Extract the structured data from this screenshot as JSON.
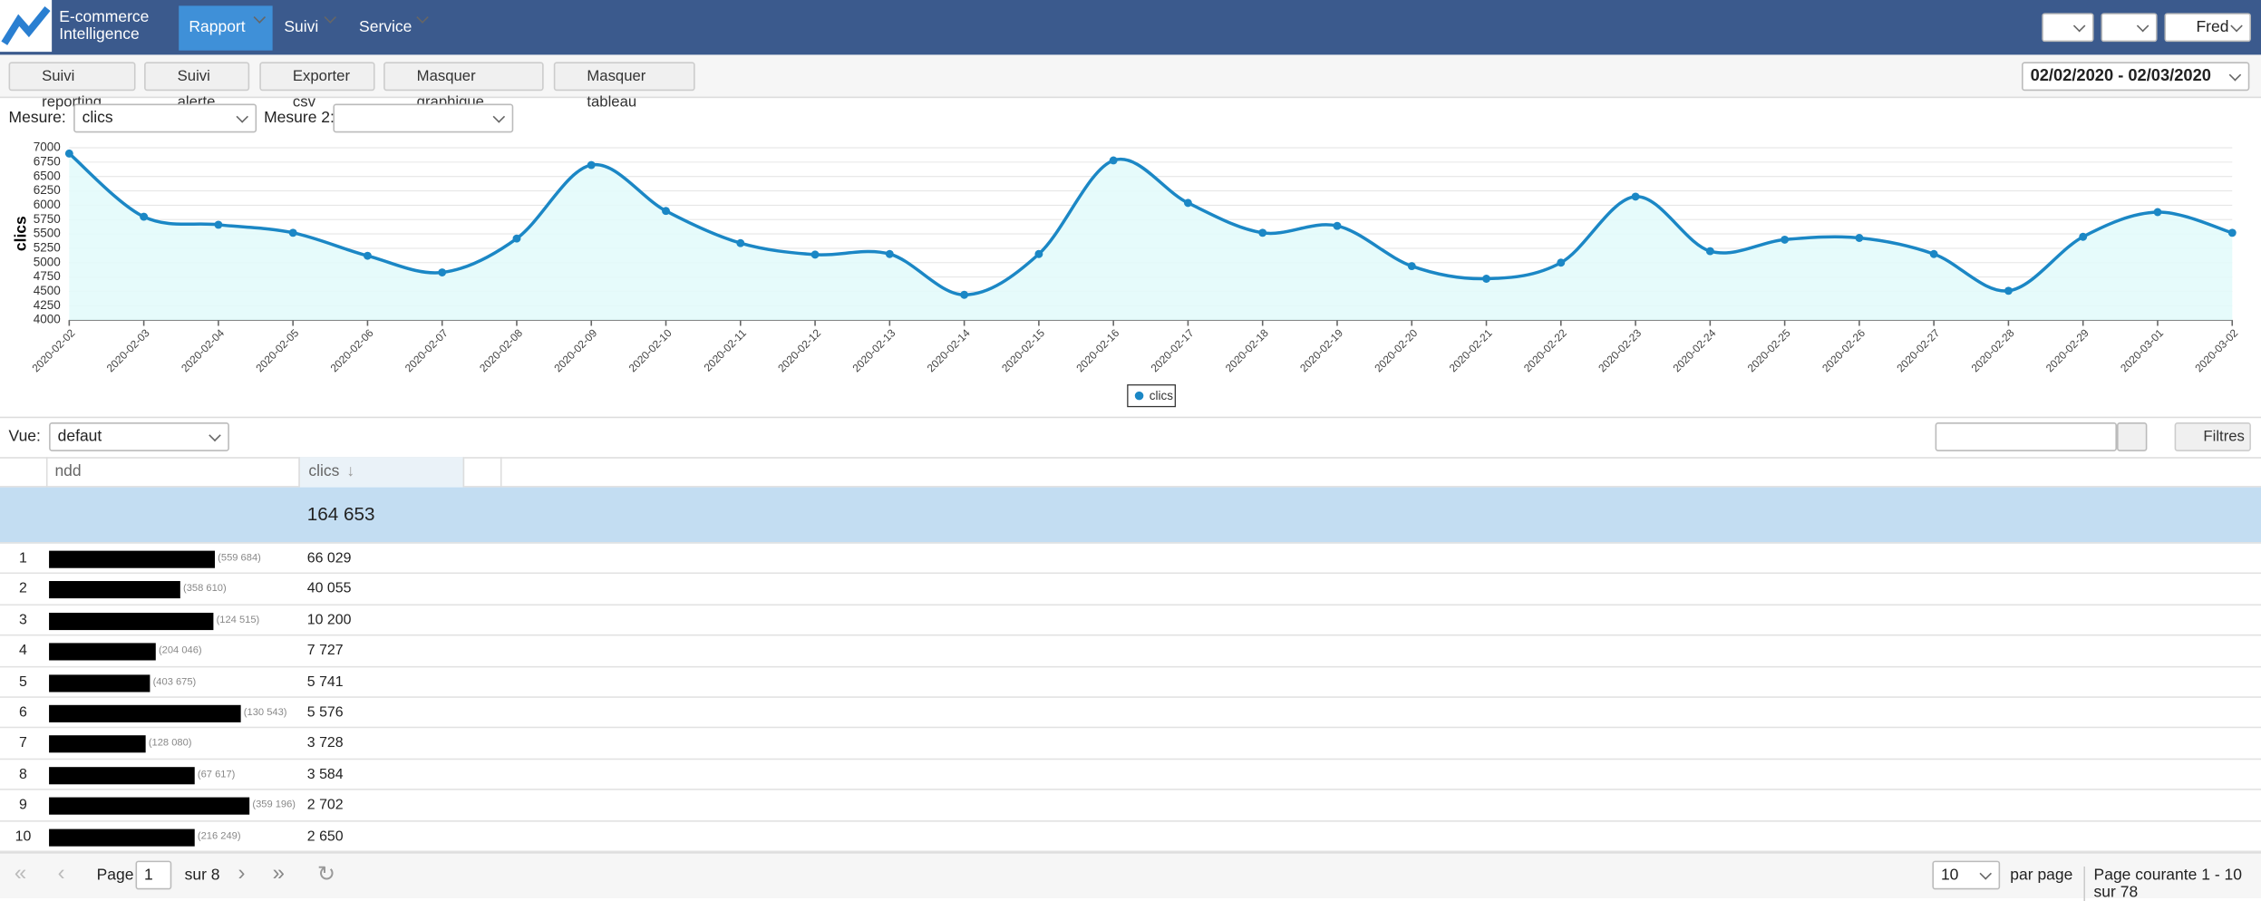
{
  "header": {
    "logo_line1": "E-commerce",
    "logo_line2": "Intelligence",
    "nav": [
      "Rapport",
      "Suivi",
      "Service"
    ],
    "user": "Fred"
  },
  "toolbar": {
    "buttons": [
      "Suivi reporting",
      "Suivi alerte",
      "Exporter csv",
      "Masquer graphique",
      "Masquer tableau"
    ],
    "date_range": "02/02/2020 - 02/03/2020"
  },
  "measure": {
    "label": "Mesure:",
    "value": "clics",
    "label2": "Mesure 2:"
  },
  "chart_data": {
    "type": "line",
    "ylabel": "clics",
    "categories": [
      "2020-02-02",
      "2020-02-03",
      "2020-02-04",
      "2020-02-05",
      "2020-02-06",
      "2020-02-07",
      "2020-02-08",
      "2020-02-09",
      "2020-02-10",
      "2020-02-11",
      "2020-02-12",
      "2020-02-13",
      "2020-02-14",
      "2020-02-15",
      "2020-02-16",
      "2020-02-17",
      "2020-02-18",
      "2020-02-19",
      "2020-02-20",
      "2020-02-21",
      "2020-02-22",
      "2020-02-23",
      "2020-02-24",
      "2020-02-25",
      "2020-02-26",
      "2020-02-27",
      "2020-02-28",
      "2020-02-29",
      "2020-03-01",
      "2020-03-02"
    ],
    "series": [
      {
        "name": "clics",
        "color": "#1b87c5",
        "values": [
          6900,
          5800,
          5660,
          5520,
          5120,
          4830,
          5420,
          6700,
          5900,
          5340,
          5140,
          5150,
          4440,
          5150,
          6780,
          6040,
          5520,
          5640,
          4940,
          4720,
          5000,
          6150,
          5200,
          5400,
          5430,
          5150,
          4510,
          5450,
          5880,
          5520
        ]
      }
    ],
    "ylim": [
      4000,
      7000
    ],
    "yticks": [
      4000,
      4250,
      4500,
      4750,
      5000,
      5250,
      5500,
      5750,
      6000,
      6250,
      6500,
      6750,
      7000
    ],
    "grid": true
  },
  "view": {
    "label": "Vue:",
    "value": "defaut",
    "filters": "Filtres"
  },
  "table": {
    "columns": [
      "ndd",
      "clics"
    ],
    "total": "164 653",
    "rows": [
      {
        "rank": "1",
        "count": "(559 684)",
        "clics": "66 029"
      },
      {
        "rank": "2",
        "count": "(358 610)",
        "clics": "40 055"
      },
      {
        "rank": "3",
        "count": "(124 515)",
        "clics": "10 200"
      },
      {
        "rank": "4",
        "count": "(204 046)",
        "clics": "7 727"
      },
      {
        "rank": "5",
        "count": "(403 675)",
        "clics": "5 741"
      },
      {
        "rank": "6",
        "count": "(130 543)",
        "clics": "5 576"
      },
      {
        "rank": "7",
        "count": "(128 080)",
        "clics": "3 728"
      },
      {
        "rank": "8",
        "count": "(67 617)",
        "clics": "3 584"
      },
      {
        "rank": "9",
        "count": "(359 196)",
        "clics": "2 702"
      },
      {
        "rank": "10",
        "count": "(216 249)",
        "clics": "2 650"
      }
    ]
  },
  "pagination": {
    "page_label": "Page",
    "page": "1",
    "of": "sur 8",
    "per_page": "10",
    "per_page_label": "par page",
    "status": "Page courante 1 - 10 sur 78"
  }
}
